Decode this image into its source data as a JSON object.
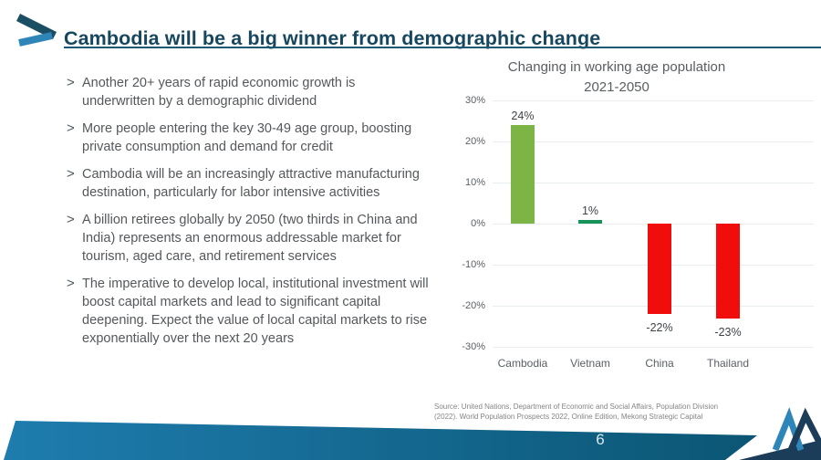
{
  "slide": {
    "title": "Cambodia will be a big winner from demographic change",
    "page_number": "6"
  },
  "bullets": [
    {
      "marker": ">",
      "text": "Another 20+ years of rapid economic growth is underwritten by a demographic dividend"
    },
    {
      "marker": ">",
      "text": "More people entering the key 30-49 age group, boosting private consumption and demand for credit"
    },
    {
      "marker": ">",
      "text": "Cambodia will be an increasingly attractive manufacturing destination, particularly for labor intensive activities"
    },
    {
      "marker": ">",
      "text": "A billion retirees globally by 2050 (two thirds in China and India) represents an enormous addressable market for tourism, aged care, and retirement services"
    },
    {
      "marker": ">",
      "text": "The imperative to develop local, institutional investment will boost capital markets and lead to significant capital deepening. Expect the value of local capital markets to rise exponentially over the next 20 years"
    }
  ],
  "chart_data": {
    "type": "bar",
    "title": "Changing in working age population",
    "subtitle": "2021-2050",
    "categories": [
      "Cambodia",
      "Vietnam",
      "China",
      "Thailand"
    ],
    "values": [
      24,
      1,
      -22,
      -23
    ],
    "data_labels": [
      "24%",
      "1%",
      "-22%",
      "-23%"
    ],
    "bar_colors": [
      "#7CB445",
      "#17945A",
      "#F20D0D",
      "#F20D0D"
    ],
    "y_ticks": [
      30,
      20,
      10,
      0,
      -10,
      -20,
      -30
    ],
    "y_tick_labels": [
      "30%",
      "20%",
      "10%",
      "0%",
      "-10%",
      "-20%",
      "-30%"
    ],
    "ylim": [
      -30,
      30
    ],
    "grid": true,
    "legend": false,
    "xlabel": "",
    "ylabel": ""
  },
  "source": {
    "line1": "Source: United Nations, Department of Economic and Social Affairs, Population Division",
    "line2": "(2022). World Population Prospects 2022, Online Edition, Mekong Strategic Capital"
  },
  "colors": {
    "title": "#17475E",
    "body_text": "#54585C",
    "footer_teal_left": "#1E7CAE",
    "footer_teal_right": "#0B5674",
    "footer_navy": "#1C3D5A",
    "logo_blue": "#2E86B8",
    "logo_dark": "#1A4F63",
    "gridline": "#E9EDF0"
  }
}
